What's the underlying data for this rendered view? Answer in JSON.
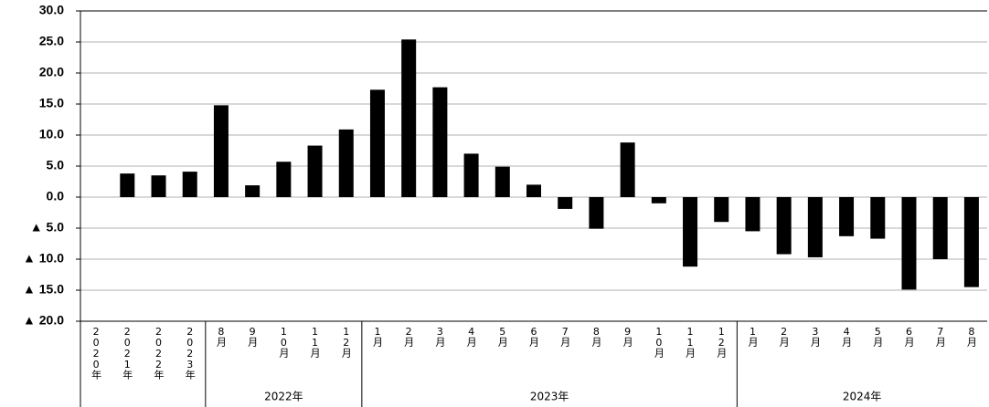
{
  "chart_data": {
    "type": "bar",
    "color": "#000000",
    "grid": true,
    "ylim": [
      -20,
      30
    ],
    "yticks": [
      {
        "value": 30,
        "label": "30.0"
      },
      {
        "value": 25,
        "label": "25.0"
      },
      {
        "value": 20,
        "label": "20.0"
      },
      {
        "value": 15,
        "label": "15.0"
      },
      {
        "value": 10,
        "label": "10.0"
      },
      {
        "value": 5,
        "label": "5.0"
      },
      {
        "value": 0,
        "label": "0.0"
      },
      {
        "value": -5,
        "label": "▲ 5.0"
      },
      {
        "value": -10,
        "label": "▲ 10.0"
      },
      {
        "value": -15,
        "label": "▲ 15.0"
      },
      {
        "value": -20,
        "label": "▲ 20.0"
      }
    ],
    "groups": [
      {
        "label": null,
        "categories": [
          "2020年",
          "2021年",
          "2022年",
          "2023年"
        ],
        "values": [
          0,
          3.8,
          3.5,
          4.1
        ]
      },
      {
        "label": "2022年",
        "categories": [
          "8月",
          "9月",
          "10月",
          "11月",
          "12月"
        ],
        "values": [
          14.8,
          1.9,
          5.7,
          8.3,
          10.9
        ]
      },
      {
        "label": "2023年",
        "categories": [
          "1月",
          "2月",
          "3月",
          "4月",
          "5月",
          "6月",
          "7月",
          "8月",
          "9月",
          "10月",
          "11月",
          "12月"
        ],
        "values": [
          17.3,
          25.4,
          17.7,
          7.0,
          4.9,
          2.0,
          -1.9,
          -5.1,
          8.8,
          -1.0,
          -11.2,
          -4.0
        ]
      },
      {
        "label": "2024年",
        "categories": [
          "1月",
          "2月",
          "3月",
          "4月",
          "5月",
          "6月",
          "7月",
          "8月"
        ],
        "values": [
          -5.5,
          -9.2,
          -9.7,
          -6.3,
          -6.7,
          -14.9,
          -10.0,
          -14.5
        ]
      }
    ]
  }
}
